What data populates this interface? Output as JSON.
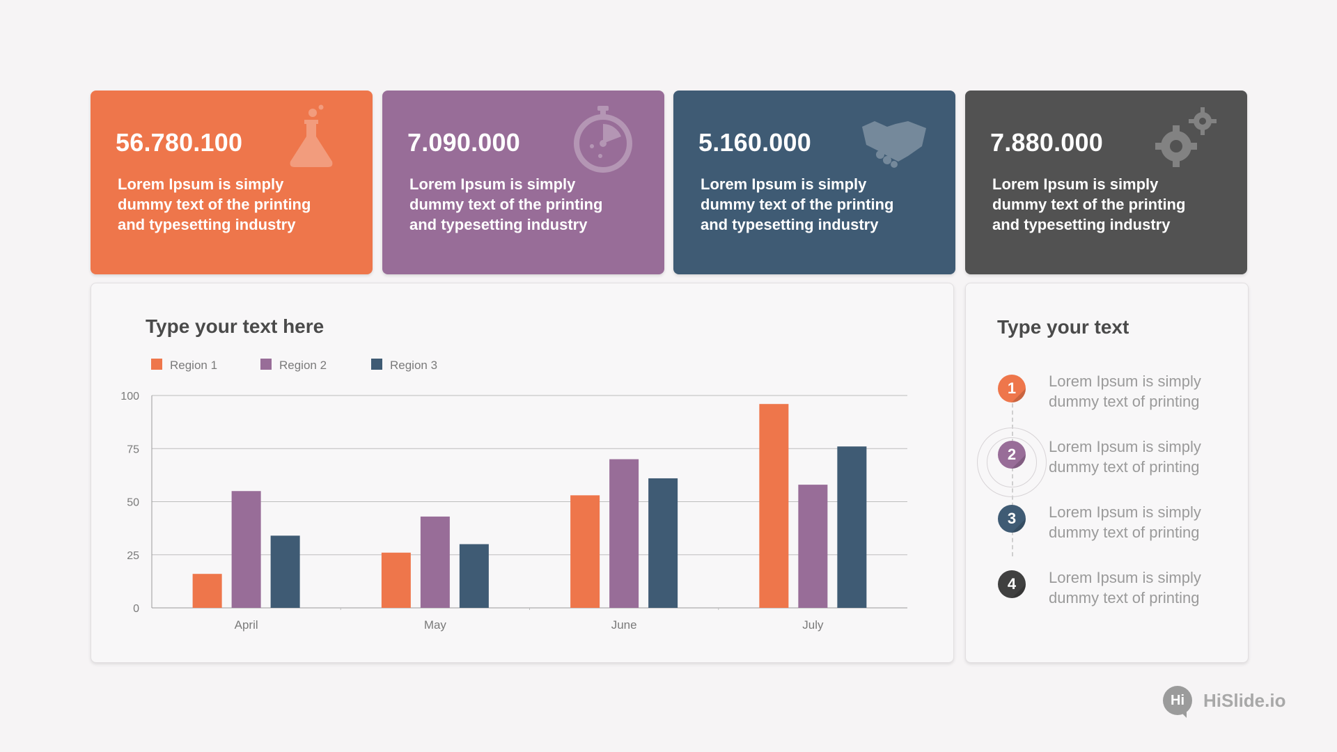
{
  "colors": {
    "orange": "#ee764b",
    "purple": "#986d98",
    "navy": "#3f5b74",
    "dark": "#525252"
  },
  "cards": [
    {
      "value": "56.780.100",
      "desc": "Lorem Ipsum is simply dummy text of the printing and typesetting industry",
      "icon": "flask-icon"
    },
    {
      "value": "7.090.000",
      "desc": "Lorem Ipsum is simply dummy text of the printing and typesetting industry",
      "icon": "stopwatch-icon"
    },
    {
      "value": "5.160.000",
      "desc": "Lorem Ipsum is simply dummy text of the printing and typesetting industry",
      "icon": "handshake-icon"
    },
    {
      "value": "7.880.000",
      "desc": "Lorem Ipsum is simply dummy text of the printing and typesetting industry",
      "icon": "gears-icon"
    }
  ],
  "chart_panel": {
    "title": "Type your text here"
  },
  "chart_data": {
    "type": "bar",
    "categories": [
      "April",
      "May",
      "June",
      "July"
    ],
    "series": [
      {
        "name": "Region 1",
        "color": "#ee764b",
        "values": [
          16,
          26,
          53,
          96
        ]
      },
      {
        "name": "Region 2",
        "color": "#986d98",
        "values": [
          55,
          43,
          70,
          58
        ]
      },
      {
        "name": "Region 3",
        "color": "#3f5b74",
        "values": [
          34,
          30,
          61,
          76
        ]
      }
    ],
    "yticks": [
      "0",
      "25",
      "50",
      "75",
      "100"
    ],
    "ylim": [
      0,
      100
    ],
    "grid": true,
    "legend": "top-left"
  },
  "side_panel": {
    "title": "Type your text",
    "steps": [
      {
        "num": "1",
        "text": "Lorem Ipsum is simply dummy text of printing",
        "color": "#ee764b"
      },
      {
        "num": "2",
        "text": "Lorem Ipsum is simply dummy text of printing",
        "color": "#986d98"
      },
      {
        "num": "3",
        "text": "Lorem Ipsum is simply dummy text of printing",
        "color": "#3f5b74"
      },
      {
        "num": "4",
        "text": "Lorem Ipsum is simply dummy text of printing",
        "color": "#404040"
      }
    ]
  },
  "brand": {
    "badge": "Hi",
    "name": "HiSlide.io"
  }
}
